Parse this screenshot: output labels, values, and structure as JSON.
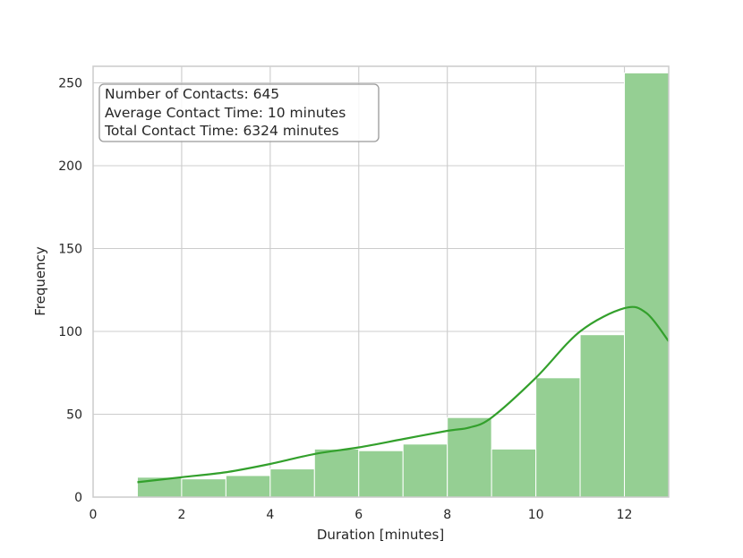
{
  "chart_data": {
    "type": "bar",
    "subtype": "histogram-with-kde",
    "xlabel": "Duration [minutes]",
    "ylabel": "Frequency",
    "xlim": [
      0,
      13
    ],
    "ylim": [
      0,
      260
    ],
    "xticks": [
      0,
      2,
      4,
      6,
      8,
      10,
      12
    ],
    "yticks": [
      0,
      50,
      100,
      150,
      200,
      250
    ],
    "grid": true,
    "bin_edges": [
      1,
      2,
      3,
      4,
      5,
      6,
      7,
      8,
      9,
      10,
      11,
      12,
      13
    ],
    "values": [
      12,
      11,
      13,
      17,
      29,
      28,
      32,
      48,
      29,
      72,
      98,
      256
    ],
    "kde": {
      "x": [
        1,
        2,
        3,
        4,
        5,
        6,
        7,
        8,
        8.5,
        9,
        10,
        11,
        12,
        12.5,
        13
      ],
      "y": [
        9,
        12,
        15,
        20,
        26,
        30,
        35,
        40,
        42,
        48,
        72,
        100,
        114,
        111,
        94
      ]
    },
    "annotation_lines": [
      "Number of Contacts: 645",
      "Average Contact Time: 10 minutes",
      "Total Contact Time: 6324 minutes"
    ],
    "colors": {
      "bar_fill": "#95cf93",
      "bar_edge": "#ffffff",
      "kde_line": "#33a02c",
      "grid": "#cccccc",
      "frame": "#cccccc",
      "annotation_border": "#999999",
      "text": "#262626"
    }
  }
}
